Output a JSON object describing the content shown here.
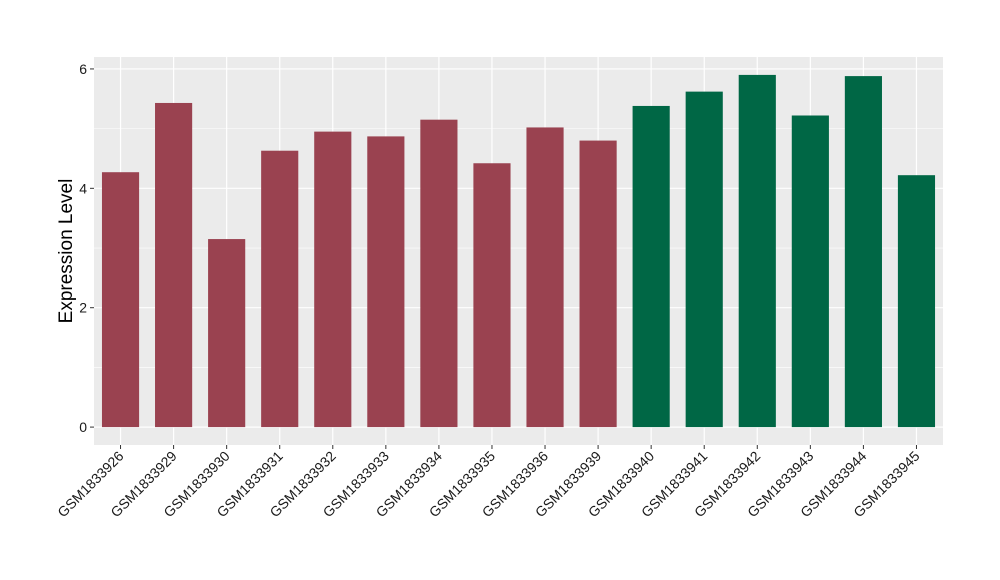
{
  "chart_data": {
    "type": "bar",
    "title": "",
    "xlabel": "",
    "ylabel": "Expression Level",
    "ylim": [
      -0.3,
      6.2
    ],
    "yticks": [
      0,
      2,
      4,
      6
    ],
    "ytick_labels": [
      "0",
      "2",
      "4",
      "6"
    ],
    "grid": true,
    "legend": "none",
    "categories": [
      "GSM1833926",
      "GSM1833929",
      "GSM1833930",
      "GSM1833931",
      "GSM1833932",
      "GSM1833933",
      "GSM1833934",
      "GSM1833935",
      "GSM1833936",
      "GSM1833939",
      "GSM1833940",
      "GSM1833941",
      "GSM1833942",
      "GSM1833943",
      "GSM1833944",
      "GSM1833945"
    ],
    "values": [
      4.27,
      5.43,
      3.15,
      4.63,
      4.95,
      4.87,
      5.15,
      4.42,
      5.02,
      4.8,
      5.38,
      5.62,
      5.9,
      5.22,
      5.88,
      4.22
    ],
    "groups": [
      0,
      0,
      0,
      0,
      0,
      0,
      0,
      0,
      0,
      0,
      1,
      1,
      1,
      1,
      1,
      1
    ],
    "colors": {
      "group_colors": [
        "#9a4250",
        "#006745"
      ],
      "panel_background": "#ebebeb",
      "grid": "#ffffff"
    }
  }
}
